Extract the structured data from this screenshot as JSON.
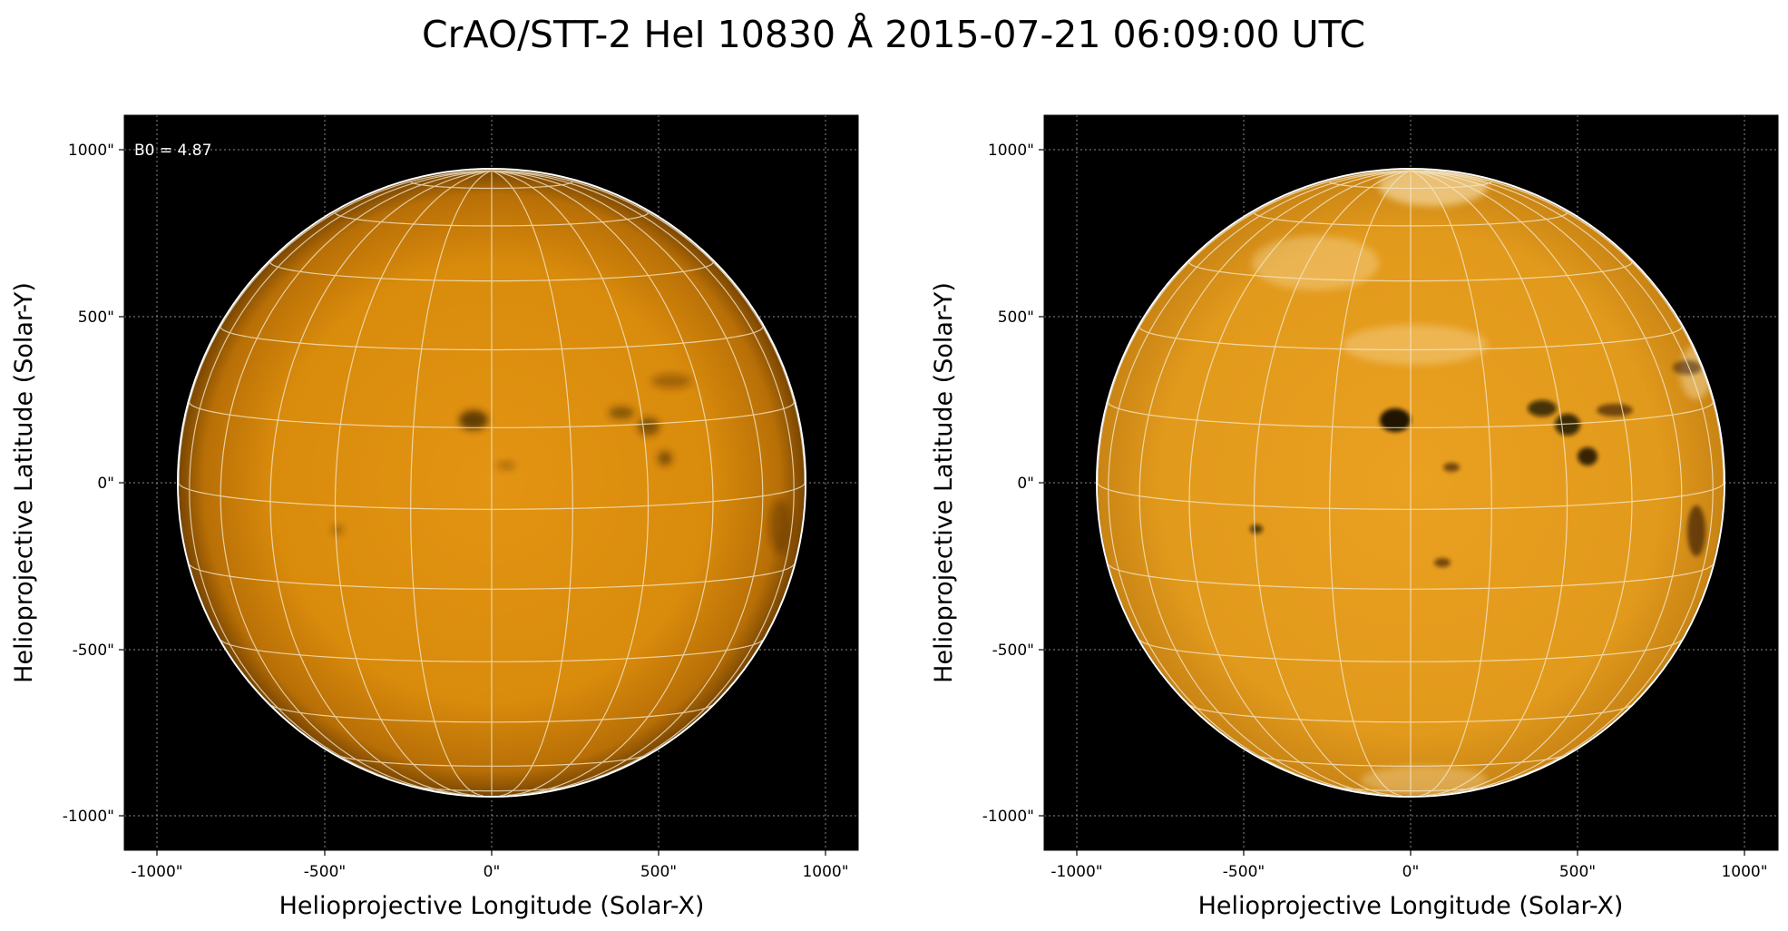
{
  "figure": {
    "title": "CrAO/STT-2 HeI 10830 Å 2015-07-21 06:09:00 UTC"
  },
  "panels": [
    {
      "id": "left",
      "annotation": "B0 = 4.87",
      "xlabel": "Helioprojective Longitude (Solar-X)",
      "ylabel": "Helioprojective Latitude (Solar-Y)",
      "xticks": [
        "-1000\"",
        "-500\"",
        "0\"",
        "500\"",
        "1000\""
      ],
      "yticks": [
        "1000\"",
        "500\"",
        "0\"",
        "-500\"",
        "-1000\""
      ],
      "contrast": "low"
    },
    {
      "id": "right",
      "annotation": "",
      "xlabel": "Helioprojective Longitude (Solar-X)",
      "ylabel": "Helioprojective Latitude (Solar-Y)",
      "xticks": [
        "-1000\"",
        "-500\"",
        "0\"",
        "500\"",
        "1000\""
      ],
      "yticks": [
        "1000\"",
        "500\"",
        "0\"",
        "-500\"",
        "-1000\""
      ],
      "contrast": "high"
    }
  ],
  "colors": {
    "sky": "#000000",
    "disk": "#e0900c",
    "limb": "#ffffff",
    "grid": "#f3e6c8",
    "dark_feature": "#1a0f00"
  }
}
